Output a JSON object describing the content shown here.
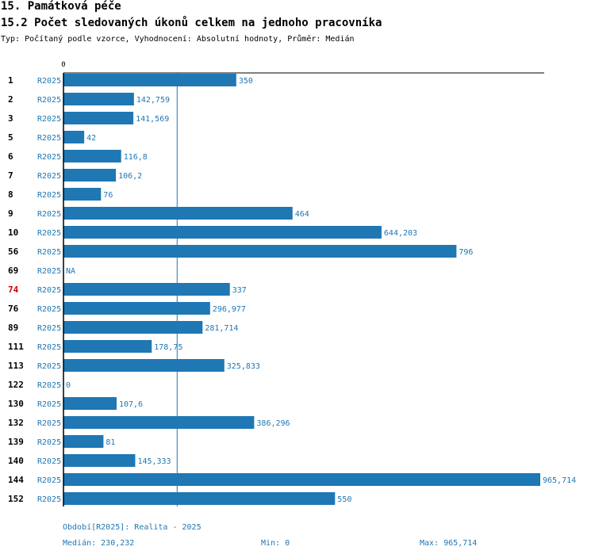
{
  "header": {
    "title": "15. Památková péče",
    "subtitle": "15.2 Počet sledovaných úkonů celkem na jednoho pracovníka",
    "type_line": "Typ: Počítaný podle vzorce, Vyhodnocení: Absolutní hodnoty, Průměr: Medián"
  },
  "colors": {
    "bar": "#1f77b4",
    "highlight": "#cc0000",
    "label": "#1f77b4",
    "text": "#000000"
  },
  "chart_data": {
    "type": "bar",
    "orientation": "horizontal",
    "series_name": "R2025",
    "axis_zero_label": "0",
    "xlim": [
      0,
      965.714
    ],
    "median_line": 230.232,
    "highlighted_category": "74",
    "rows": [
      {
        "category": "1",
        "series": "R2025",
        "value": 350,
        "label": "350"
      },
      {
        "category": "2",
        "series": "R2025",
        "value": 142.759,
        "label": "142,759"
      },
      {
        "category": "3",
        "series": "R2025",
        "value": 141.569,
        "label": "141,569"
      },
      {
        "category": "5",
        "series": "R2025",
        "value": 42,
        "label": "42"
      },
      {
        "category": "6",
        "series": "R2025",
        "value": 116.8,
        "label": "116,8"
      },
      {
        "category": "7",
        "series": "R2025",
        "value": 106.2,
        "label": "106,2"
      },
      {
        "category": "8",
        "series": "R2025",
        "value": 76,
        "label": "76"
      },
      {
        "category": "9",
        "series": "R2025",
        "value": 464,
        "label": "464"
      },
      {
        "category": "10",
        "series": "R2025",
        "value": 644.203,
        "label": "644,203"
      },
      {
        "category": "56",
        "series": "R2025",
        "value": 796,
        "label": "796"
      },
      {
        "category": "69",
        "series": "R2025",
        "value": null,
        "label": "NA"
      },
      {
        "category": "74",
        "series": "R2025",
        "value": 337,
        "label": "337"
      },
      {
        "category": "76",
        "series": "R2025",
        "value": 296.977,
        "label": "296,977"
      },
      {
        "category": "89",
        "series": "R2025",
        "value": 281.714,
        "label": "281,714"
      },
      {
        "category": "111",
        "series": "R2025",
        "value": 178.75,
        "label": "178,75"
      },
      {
        "category": "113",
        "series": "R2025",
        "value": 325.833,
        "label": "325,833"
      },
      {
        "category": "122",
        "series": "R2025",
        "value": 0,
        "label": "0"
      },
      {
        "category": "130",
        "series": "R2025",
        "value": 107.6,
        "label": "107,6"
      },
      {
        "category": "132",
        "series": "R2025",
        "value": 386.296,
        "label": "386,296"
      },
      {
        "category": "139",
        "series": "R2025",
        "value": 81,
        "label": "81"
      },
      {
        "category": "140",
        "series": "R2025",
        "value": 145.333,
        "label": "145,333"
      },
      {
        "category": "144",
        "series": "R2025",
        "value": 965.714,
        "label": "965,714"
      },
      {
        "category": "152",
        "series": "R2025",
        "value": 550,
        "label": "550"
      }
    ]
  },
  "footer": {
    "period": "Období[R2025]: Realita - 2025",
    "median": "Medián: 230,232",
    "min": "Min: 0",
    "max": "Max: 965,714"
  }
}
